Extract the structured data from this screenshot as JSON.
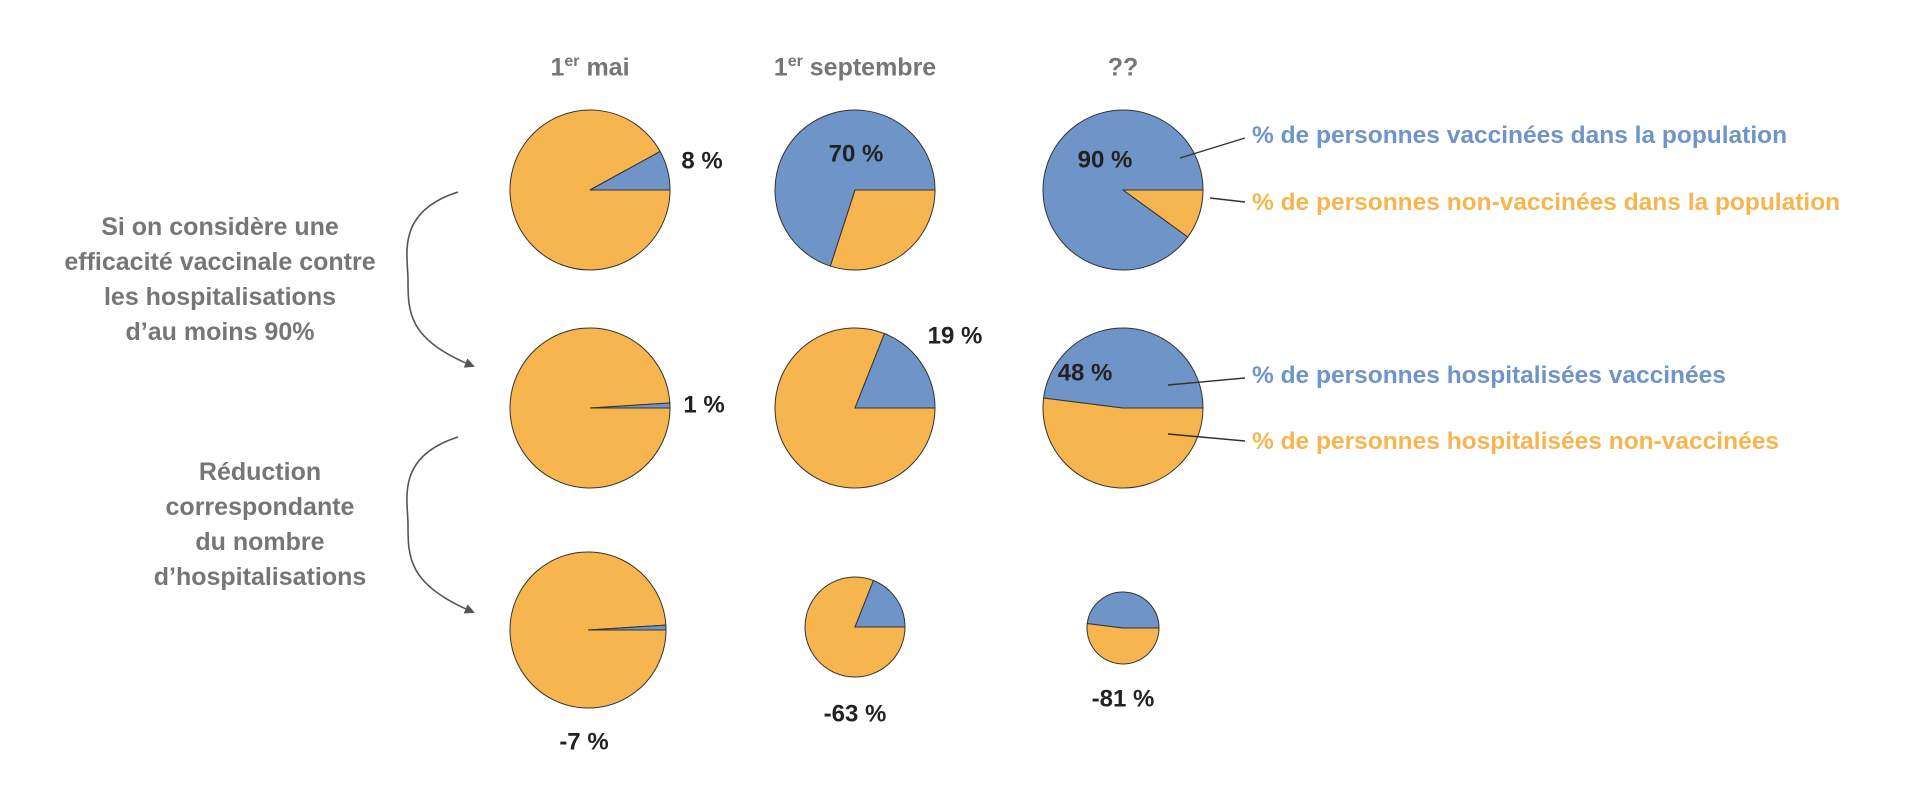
{
  "columns": [
    {
      "prefix": "1",
      "sup": "er",
      "text": " mai"
    },
    {
      "prefix": "1",
      "sup": "er",
      "text": " septembre"
    },
    {
      "prefix": "??",
      "sup": "",
      "text": ""
    }
  ],
  "side_labels": {
    "efficacy": [
      "Si on considère une",
      "efficacité vaccinale contre",
      "les hospitalisations",
      "d’au moins 90%"
    ],
    "reduction": [
      "Réduction",
      "correspondante",
      "du nombre",
      "d’hospitalisations"
    ]
  },
  "legend": {
    "vaccinated_population": "% de personnes vaccinées dans la population",
    "unvaccinated_population": "% de personnes non-vaccinées dans la population",
    "vaccinated_hospitalized": "% de personnes hospitalisées vaccinées",
    "unvaccinated_hospitalized": "% de personnes hospitalisées non-vaccinées"
  },
  "colors": {
    "vaccinated": "#6f94c8",
    "unvaccinated": "#f7b54f",
    "dark_text": "#222222",
    "gray_text": "#767676",
    "arrow": "#555555"
  },
  "chart_data": {
    "type": "pie",
    "series_names": [
      "vaccinés",
      "non-vaccinés"
    ],
    "rows": [
      {
        "key": "population",
        "pies": [
          {
            "vaccinated_pct": 8,
            "label": "8 %"
          },
          {
            "vaccinated_pct": 70,
            "label": "70 %"
          },
          {
            "vaccinated_pct": 90,
            "label": "90 %"
          }
        ]
      },
      {
        "key": "hospitalized",
        "pies": [
          {
            "vaccinated_pct": 1,
            "label": "1 %"
          },
          {
            "vaccinated_pct": 19,
            "label": "19 %"
          },
          {
            "vaccinated_pct": 48,
            "label": "48 %"
          }
        ]
      },
      {
        "key": "reduction",
        "pies": [
          {
            "vaccinated_pct": 1,
            "relative_size": 0.93,
            "label": "-7 %"
          },
          {
            "vaccinated_pct": 19,
            "relative_size": 0.37,
            "label": "-63 %"
          },
          {
            "vaccinated_pct": 48,
            "relative_size": 0.19,
            "label": "-81 %"
          }
        ]
      }
    ]
  }
}
